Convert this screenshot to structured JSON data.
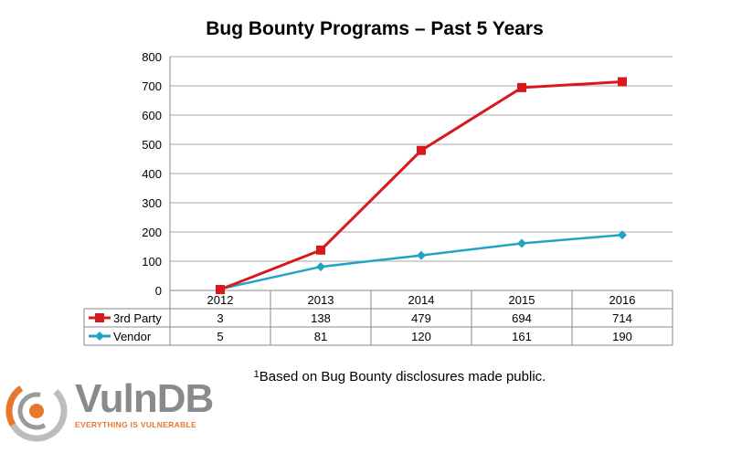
{
  "chart_data": {
    "type": "line",
    "title": "Bug Bounty Programs – Past 5 Years",
    "categories": [
      "2012",
      "2013",
      "2014",
      "2015",
      "2016"
    ],
    "ylim": [
      0,
      800
    ],
    "yticks": [
      "0",
      "100",
      "200",
      "300",
      "400",
      "500",
      "600",
      "700",
      "800"
    ],
    "grid": true,
    "legend": "data-table",
    "series": [
      {
        "name": "3rd Party",
        "values": [
          3,
          138,
          479,
          694,
          714
        ],
        "color": "#d7191c",
        "marker": "square"
      },
      {
        "name": "Vendor",
        "values": [
          5,
          81,
          120,
          161,
          190
        ],
        "color": "#23a3c2",
        "marker": "diamond"
      }
    ]
  },
  "footnote": {
    "marker": "1",
    "text": "Based on Bug Bounty disclosures made public."
  },
  "logo": {
    "name": "VulnDB",
    "tagline": "EVERYTHING IS VULNERABLE",
    "icon": "vulndb-swirl-icon"
  }
}
